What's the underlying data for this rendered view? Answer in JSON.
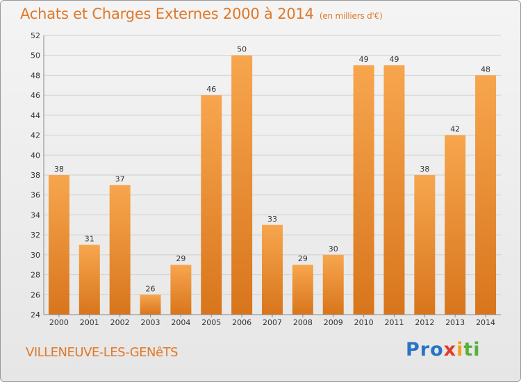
{
  "header": {
    "title": "Achats et Charges Externes 2000 à 2014",
    "unit": "(en milliers d'€)"
  },
  "footer": {
    "city": "VILLENEUVE-LES-GENêTS",
    "brand_parts": [
      "Pro",
      "x",
      "i",
      "ti"
    ]
  },
  "colors": {
    "accent": "#e07828",
    "bar_light": "#f7a64e",
    "bar_dark": "#d8751c"
  },
  "chart_data": {
    "type": "bar",
    "title": "Achats et Charges Externes 2000 à 2014",
    "subtitle": "(en milliers d'€)",
    "categories": [
      "2000",
      "2001",
      "2002",
      "2003",
      "2004",
      "2005",
      "2006",
      "2007",
      "2008",
      "2009",
      "2010",
      "2011",
      "2012",
      "2013",
      "2014"
    ],
    "values": [
      38,
      31,
      37,
      26,
      29,
      46,
      50,
      33,
      29,
      30,
      49,
      49,
      38,
      42,
      48
    ],
    "ylim": [
      24,
      52
    ],
    "yticks": [
      24,
      26,
      28,
      30,
      32,
      34,
      36,
      38,
      40,
      42,
      44,
      46,
      48,
      50,
      52
    ],
    "grid": true,
    "data_labels": true
  }
}
